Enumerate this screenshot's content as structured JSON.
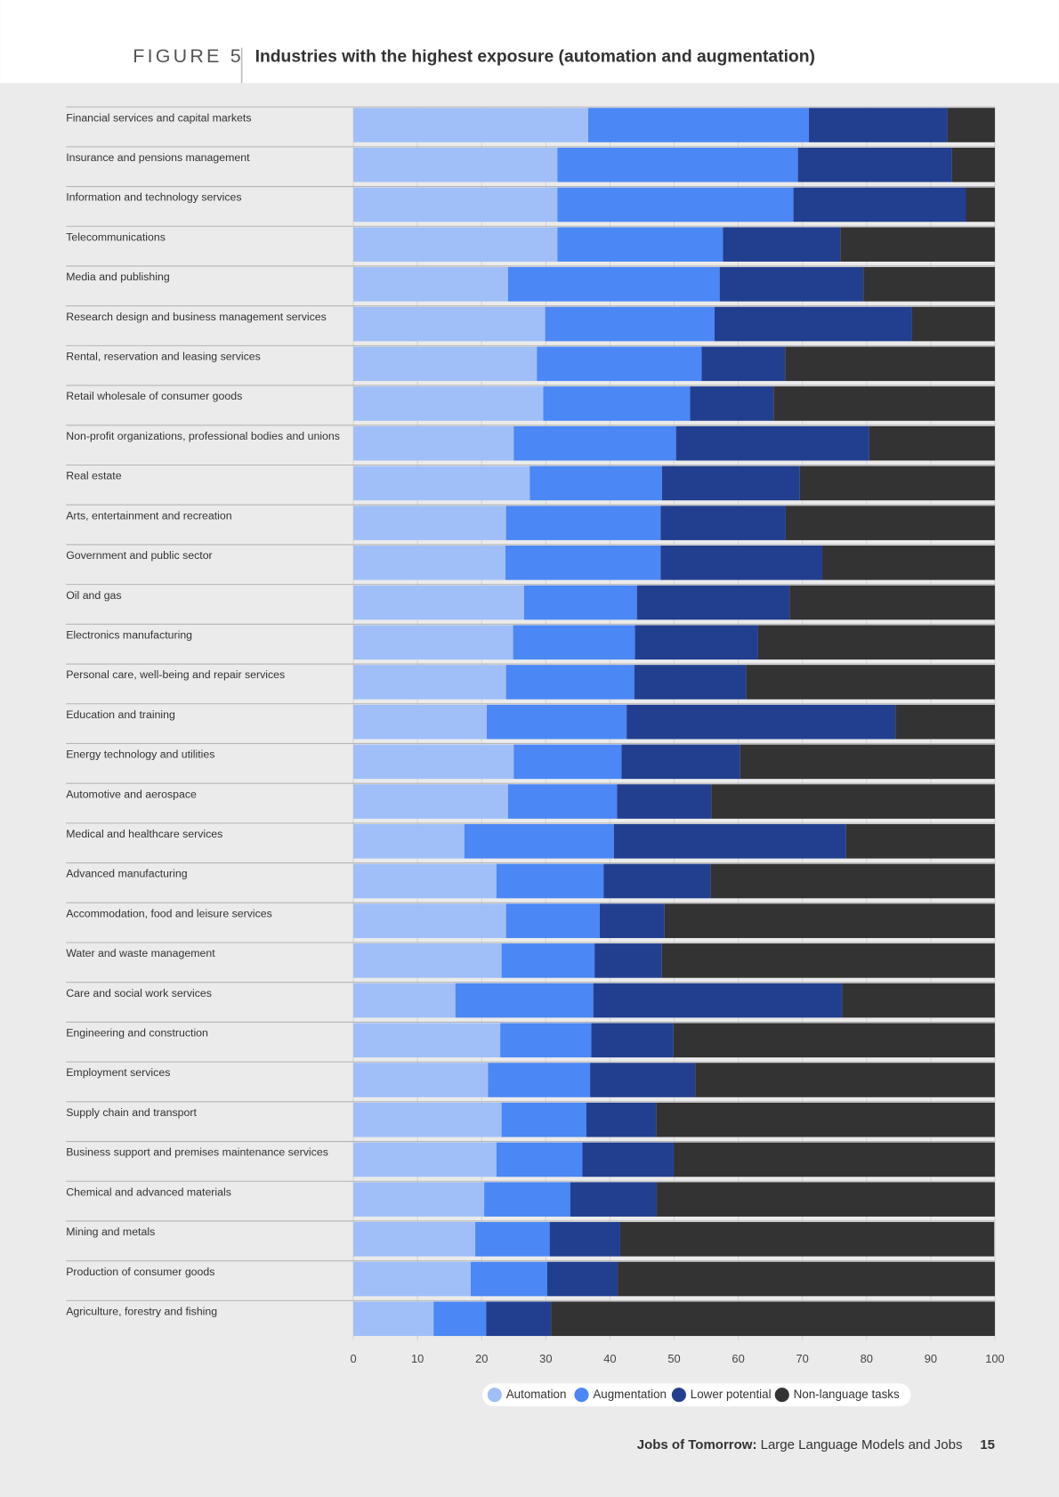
{
  "chart_data": {
    "type": "bar",
    "orientation": "horizontal",
    "stacked": true,
    "figure_label": "FIGURE 5",
    "title": "Industries with the highest exposure (automation and augmentation)",
    "categories": [
      "Financial services and capital markets",
      "Insurance and pensions management",
      "Information and technology services",
      "Telecommunications",
      "Media and publishing",
      "Research design and business management services",
      "Rental, reservation and leasing services",
      "Retail wholesale of consumer goods",
      "Non-profit organizations, professional bodies and unions",
      "Real estate",
      "Arts, entertainment and recreation",
      "Government and public sector",
      "Oil and gas",
      "Electronics manufacturing",
      "Personal care, well-being and repair services",
      "Education and training",
      "Energy technology and utilities",
      "Automotive and aerospace",
      "Medical and healthcare services",
      "Advanced manufacturing",
      "Accommodation, food and leisure services",
      "Water and waste management",
      "Care and social work services",
      "Engineering and construction",
      "Employment services",
      "Supply chain and transport",
      "Business support and premises maintenance services",
      "Chemical and advanced materials",
      "Mining and metals",
      "Production of consumer goods",
      "Agriculture, forestry and fishing"
    ],
    "series": [
      {
        "name": "Automation",
        "color": "#a0bff8",
        "values": [
          36.6,
          31.8,
          31.8,
          31.8,
          24.1,
          29.9,
          28.6,
          29.6,
          25.0,
          27.5,
          23.8,
          23.7,
          26.6,
          24.9,
          23.8,
          20.8,
          25.0,
          24.1,
          17.3,
          22.3,
          23.8,
          23.1,
          15.9,
          22.9,
          21.0,
          23.1,
          22.3,
          20.4,
          19.0,
          18.3,
          12.5
        ]
      },
      {
        "name": "Augmentation",
        "color": "#4b87f5",
        "values": [
          34.4,
          37.5,
          36.8,
          25.8,
          33.0,
          26.4,
          25.7,
          22.9,
          25.3,
          20.6,
          24.1,
          24.2,
          17.6,
          19.0,
          20.0,
          21.8,
          16.8,
          17.0,
          23.3,
          16.7,
          14.6,
          14.5,
          21.5,
          14.2,
          15.9,
          13.2,
          13.4,
          13.4,
          11.6,
          11.9,
          8.2
        ]
      },
      {
        "name": "Lower potential",
        "color": "#223f8f",
        "values": [
          21.6,
          24.0,
          26.9,
          18.3,
          22.4,
          30.8,
          13.0,
          13.0,
          30.1,
          21.5,
          19.5,
          25.2,
          23.8,
          19.2,
          17.4,
          41.9,
          18.5,
          14.7,
          36.2,
          16.7,
          10.1,
          10.5,
          38.8,
          12.8,
          16.4,
          10.9,
          14.3,
          13.5,
          11.0,
          11.0,
          10.1
        ]
      },
      {
        "name": "Non-language tasks",
        "color": "#333333",
        "values": [
          7.4,
          6.7,
          4.5,
          24.1,
          20.5,
          12.9,
          32.7,
          34.5,
          19.6,
          30.4,
          32.6,
          26.9,
          32.0,
          36.9,
          38.8,
          15.5,
          39.7,
          44.2,
          23.2,
          44.3,
          51.5,
          51.9,
          23.8,
          50.1,
          46.7,
          52.8,
          50.0,
          52.7,
          58.3,
          58.8,
          69.2
        ]
      }
    ],
    "xlim": [
      0,
      100
    ],
    "xticks": [
      0,
      10,
      20,
      30,
      40,
      50,
      60,
      70,
      80,
      90,
      100
    ],
    "grid": true
  },
  "footer": {
    "title_bold": "Jobs of Tomorrow:",
    "title_rest": "Large Language Models and Jobs",
    "page": "15"
  }
}
